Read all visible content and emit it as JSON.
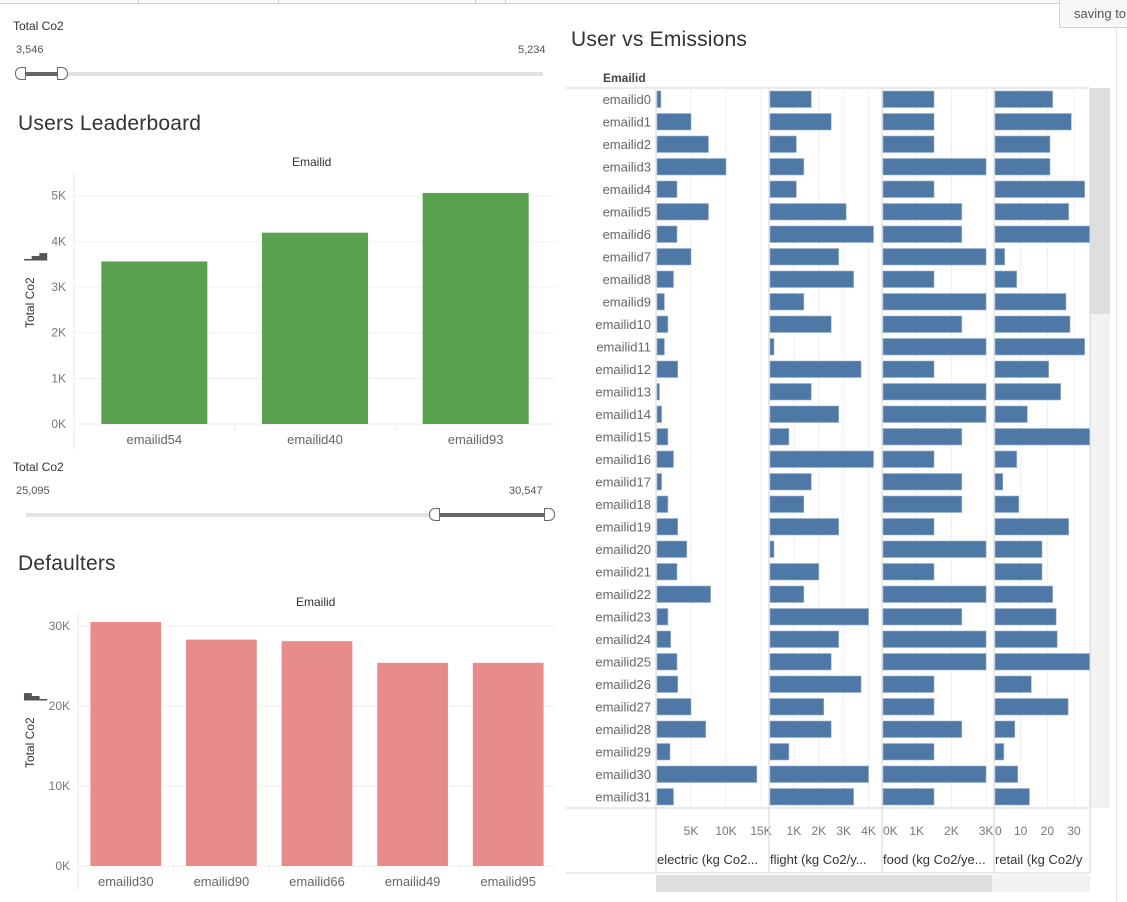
{
  "status": {
    "saving_text": "saving to"
  },
  "leaderboard_filter": {
    "label": "Total Co2",
    "min_label": "3,546",
    "max_label": "5,234",
    "range_min": 3546,
    "range_max": 5234,
    "selected_fraction_start": 0.0,
    "selected_fraction_end": 0.08
  },
  "defaulters_filter": {
    "label": "Total Co2",
    "min_label": "25,095",
    "max_label": "30,547",
    "range_min": 25095,
    "range_max": 30547,
    "selected_fraction_start": 0.78,
    "selected_fraction_end": 1.0
  },
  "chart_data": [
    {
      "id": "leaderboard",
      "type": "bar",
      "title": "Users Leaderboard",
      "xlabel": "Emailid",
      "ylabel": "Total Co2",
      "categories": [
        "emailid54",
        "emailid40",
        "emailid93"
      ],
      "values": [
        3560,
        4190,
        5060
      ],
      "ylim": [
        0,
        5300
      ],
      "yticks": [
        0,
        1000,
        2000,
        3000,
        4000,
        5000
      ],
      "ytick_labels": [
        "0K",
        "1K",
        "2K",
        "3K",
        "4K",
        "5K"
      ],
      "color": "#59a14f",
      "grid": true
    },
    {
      "id": "defaulters",
      "type": "bar",
      "title": "Defaulters",
      "xlabel": "Emailid",
      "ylabel": "Total Co2",
      "categories": [
        "emailid30",
        "emailid90",
        "emailid66",
        "emailid49",
        "emailid95"
      ],
      "values": [
        30500,
        28300,
        28100,
        25400,
        25400
      ],
      "ylim": [
        0,
        30500
      ],
      "yticks": [
        0,
        10000,
        20000,
        30000
      ],
      "ytick_labels": [
        "0K",
        "10K",
        "20K",
        "30K"
      ],
      "color": "#e88b8b",
      "grid": true
    },
    {
      "id": "user-vs-emissions",
      "type": "bar",
      "orientation": "horizontal",
      "title": "User vs Emissions",
      "row_header": "Emailid",
      "categories": [
        "emailid0",
        "emailid1",
        "emailid2",
        "emailid3",
        "emailid4",
        "emailid5",
        "emailid6",
        "emailid7",
        "emailid8",
        "emailid9",
        "emailid10",
        "emailid11",
        "emailid12",
        "emailid13",
        "emailid14",
        "emailid15",
        "emailid16",
        "emailid17",
        "emailid18",
        "emailid19",
        "emailid20",
        "emailid21",
        "emailid22",
        "emailid23",
        "emailid24",
        "emailid25",
        "emailid26",
        "emailid27",
        "emailid28",
        "emailid29",
        "emailid30",
        "emailid31"
      ],
      "color": "#4e79a7",
      "grid": true,
      "series": [
        {
          "name": "electric (kg Co2...",
          "xlim": [
            0,
            16000
          ],
          "xticks": [
            5000,
            10000,
            15000
          ],
          "xtick_labels": [
            "5K",
            "10K",
            "15K"
          ],
          "values": [
            700,
            5000,
            7500,
            10000,
            3000,
            7500,
            3000,
            5000,
            2500,
            1200,
            1700,
            1200,
            3100,
            500,
            800,
            1700,
            2500,
            800,
            1700,
            3100,
            4400,
            3000,
            7800,
            1700,
            2100,
            3000,
            3100,
            5000,
            7100,
            2000,
            14400,
            2500
          ]
        },
        {
          "name": "flight (kg Co2/y...",
          "xlim": [
            0,
            4500
          ],
          "xticks": [
            1000,
            2000,
            3000,
            4000
          ],
          "xtick_labels": [
            "1K",
            "2K",
            "3K",
            "4K"
          ],
          "values": [
            1700,
            2500,
            1100,
            1400,
            1100,
            3100,
            4200,
            2800,
            3400,
            1400,
            2500,
            200,
            3700,
            1700,
            2800,
            800,
            4200,
            1700,
            1400,
            2800,
            200,
            2000,
            1400,
            4000,
            2800,
            2500,
            3700,
            2200,
            2500,
            800,
            4000,
            3400
          ]
        },
        {
          "name": "food (kg Co2/ye...",
          "xlim": [
            0,
            3200
          ],
          "xticks": [
            0,
            1000,
            2000,
            3000
          ],
          "xtick_labels": [
            "0K",
            "1K",
            "2K",
            "3K"
          ],
          "values": [
            1500,
            1500,
            1500,
            3000,
            1500,
            2300,
            2300,
            3000,
            1500,
            3000,
            2300,
            3000,
            1500,
            3000,
            3000,
            2300,
            1500,
            2300,
            2300,
            1500,
            3000,
            1500,
            3000,
            2300,
            3000,
            3000,
            1500,
            1500,
            2300,
            1500,
            3000,
            1500
          ]
        },
        {
          "name": "retail (kg Co2/y",
          "xlim": [
            0,
            36
          ],
          "xticks": [
            0,
            10,
            20,
            30
          ],
          "xtick_labels": [
            "0",
            "10",
            "20",
            "30"
          ],
          "values": [
            22,
            29,
            21,
            21,
            34,
            28,
            36,
            4,
            8.5,
            27,
            28.5,
            34,
            20.5,
            25,
            12.5,
            36,
            8.5,
            3.3,
            9.3,
            28,
            18,
            18,
            22,
            23.3,
            23.7,
            36,
            14,
            27.8,
            7.8,
            3.7,
            8.9,
            13.3
          ]
        }
      ]
    }
  ]
}
